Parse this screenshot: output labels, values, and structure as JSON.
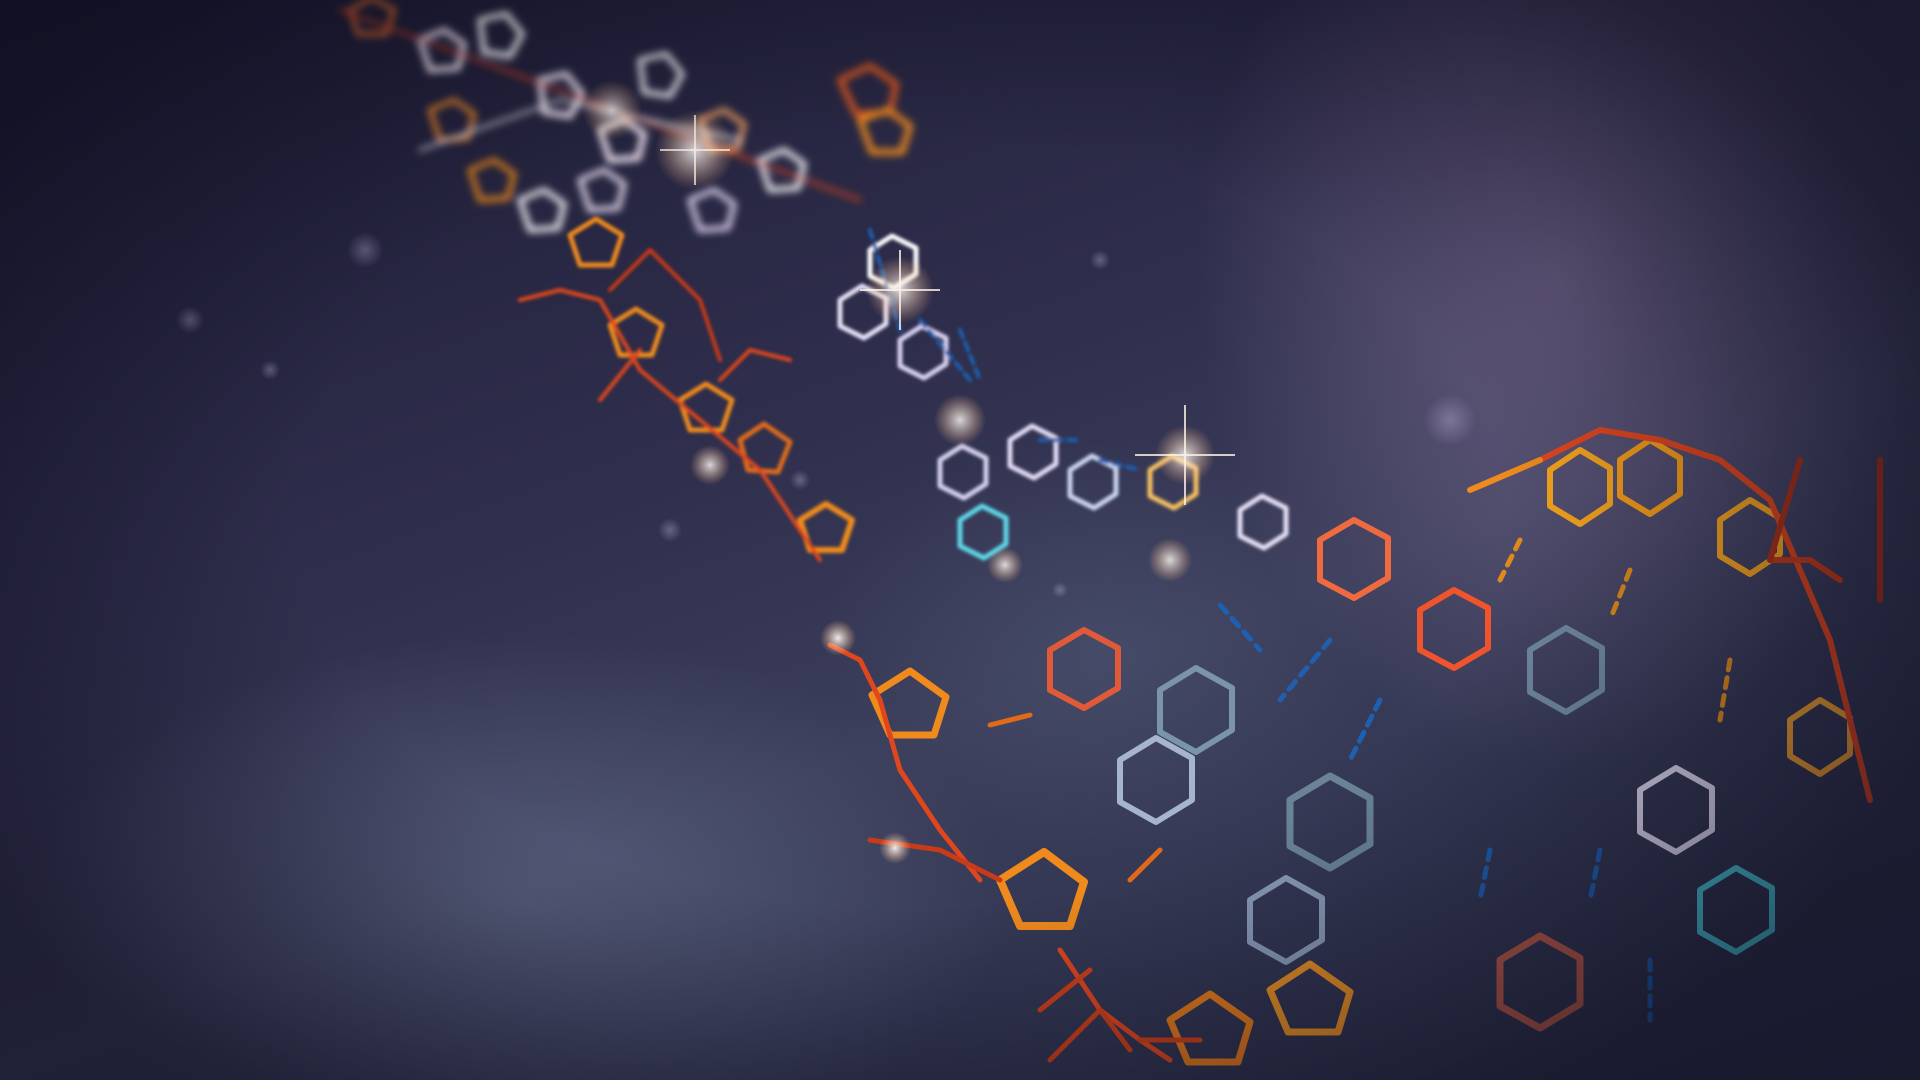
{
  "scene": {
    "subject": "molecule-strand",
    "colors": {
      "backbone_orange": "#f08a1c",
      "backbone_red": "#e0461e",
      "base_pale": "#d8d4f0",
      "base_blue_gray": "#6f8aa0",
      "hydrogen_bond": "#1f5fb0",
      "cyan_accent": "#48d8e8",
      "glow_white": "#fff6ec",
      "background_dark": "#1c1b32",
      "background_light": "#5a5e80"
    }
  }
}
